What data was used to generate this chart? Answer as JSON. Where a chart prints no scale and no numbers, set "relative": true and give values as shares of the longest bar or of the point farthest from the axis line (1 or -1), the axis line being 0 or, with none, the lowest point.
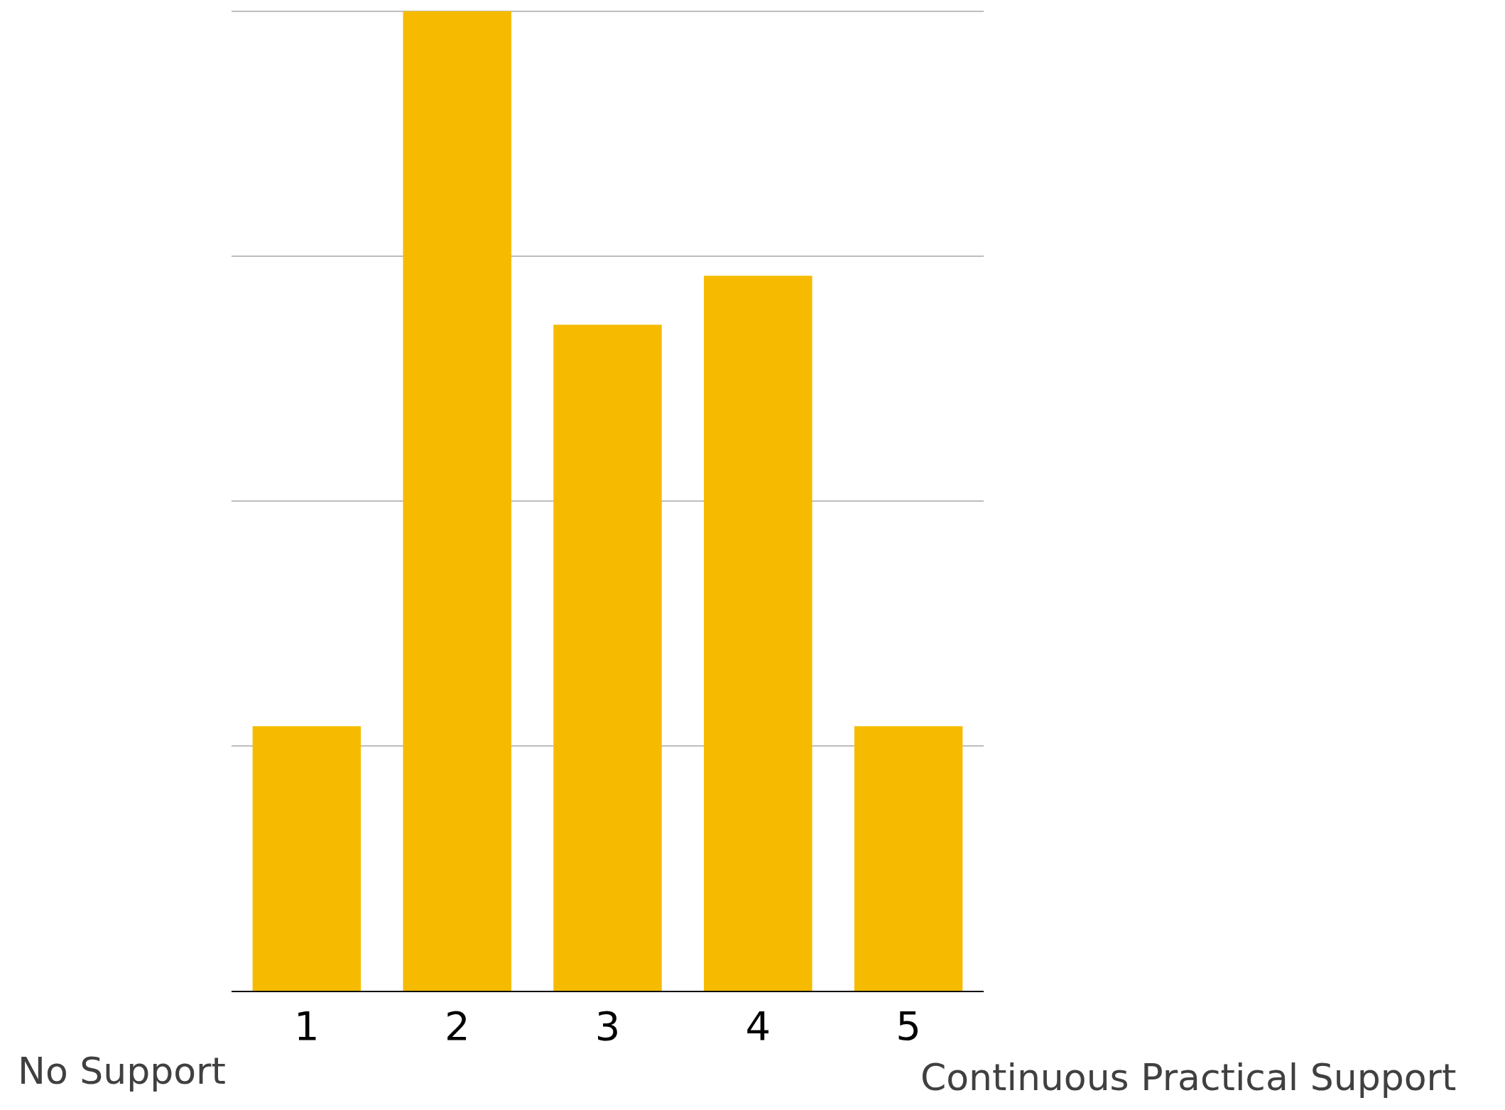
{
  "chart_data": {
    "type": "bar",
    "relative": true,
    "categories": [
      "1",
      "2",
      "3",
      "4",
      "5"
    ],
    "values": [
      0.27,
      1,
      0.68,
      0.73,
      0.27
    ],
    "color": "#f6bb00",
    "grid": "y",
    "legend": false,
    "annotations": [
      "No Support",
      "Continuous Practical Support"
    ]
  }
}
